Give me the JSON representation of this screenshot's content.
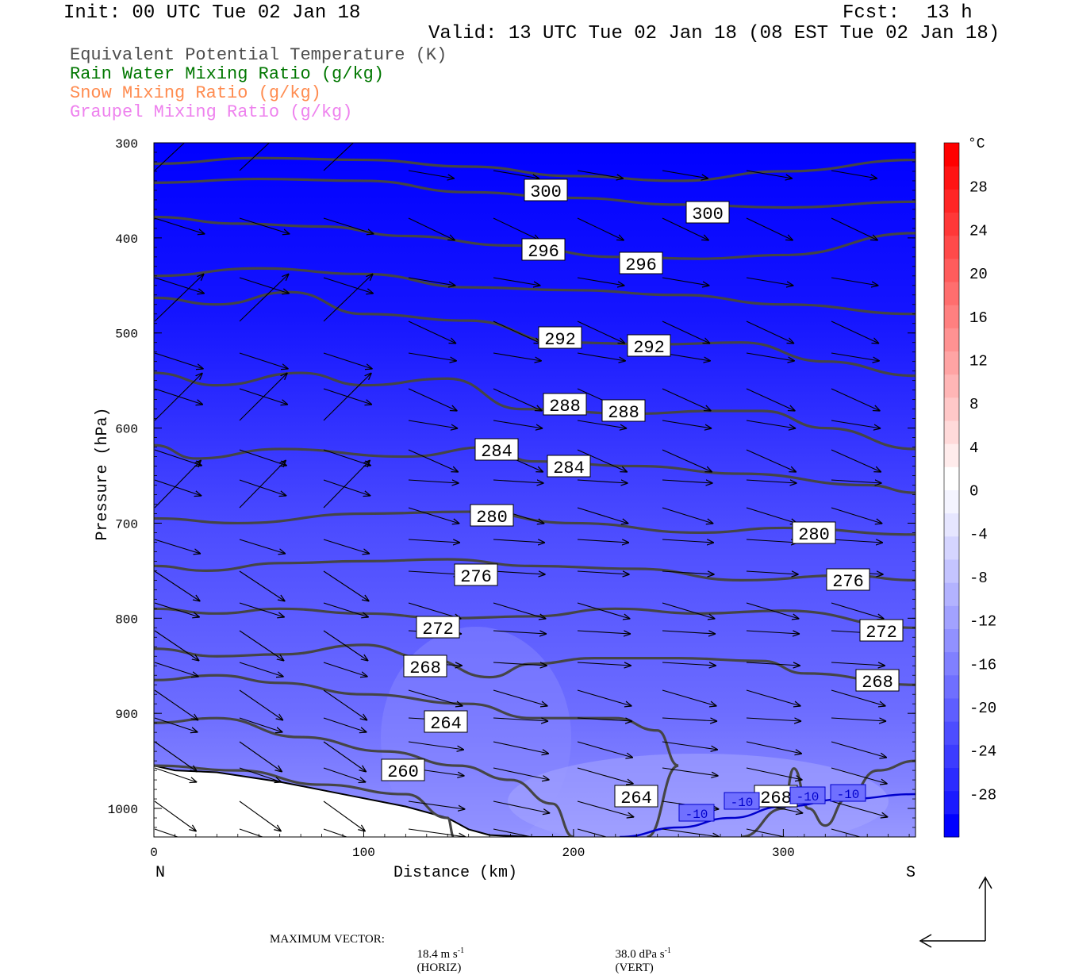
{
  "header": {
    "init": "Init: 00 UTC Tue 02 Jan 18",
    "fcst_label": "Fcst:",
    "fcst_value": "13 h",
    "valid": "Valid: 13 UTC Tue 02 Jan 18 (08 EST Tue 02 Jan 18)"
  },
  "fields": [
    {
      "label": "Equivalent Potential Temperature (K)",
      "color": "#4d4d4d"
    },
    {
      "label": "Rain Water Mixing Ratio (g/kg)",
      "color": "#007700"
    },
    {
      "label": "Snow Mixing Ratio (g/kg)",
      "color": "#ff8c50"
    },
    {
      "label": "Graupel Mixing Ratio (g/kg)",
      "color": "#ee82ee"
    }
  ],
  "footer": {
    "max_vector_label": "MAXIMUM VECTOR:",
    "horiz": "18.4 m s",
    "horiz_tail": "(HORIZ)",
    "vert": "38.0 dPa s",
    "vert_tail": "(VERT)",
    "exp": "-1"
  },
  "chart_data": {
    "type": "cross-section",
    "xlabel": "Distance (km)",
    "ylabel": "Pressure (hPa)",
    "xlim": [
      0,
      363
    ],
    "ylim": [
      1030,
      300
    ],
    "x_ticks": [
      "0",
      "100",
      "200",
      "300"
    ],
    "y_ticks": [
      "300",
      "400",
      "500",
      "600",
      "700",
      "800",
      "900",
      "1000"
    ],
    "x_end_labels": {
      "left": "N",
      "right": "S"
    },
    "colorbar": {
      "unit": "°C",
      "tick_labels": [
        "28",
        "24",
        "20",
        "16",
        "12",
        "8",
        "4",
        "0",
        "-4",
        "-8",
        "-12",
        "-16",
        "-20",
        "-24",
        "-28"
      ],
      "range": [
        -32,
        32
      ],
      "colors_cold_to_warm": [
        "#0000ff",
        "#1a1aff",
        "#2b2bff",
        "#3c3cff",
        "#4d4dff",
        "#5e5eff",
        "#6f6fff",
        "#8080ff",
        "#9191ff",
        "#a2a2ff",
        "#b3b3ff",
        "#c4c4ff",
        "#d5d5ff",
        "#e6e6ff",
        "#f4f4ff",
        "#ffffff",
        "#ffecec",
        "#ffdada",
        "#ffc8c8",
        "#ffb6b6",
        "#ffa4a4",
        "#ff9292",
        "#ff8080",
        "#ff6e6e",
        "#ff5c5c",
        "#ff4a4a",
        "#ff3838",
        "#ff2626",
        "#ff1414",
        "#ff0000"
      ]
    },
    "theta_e_contours": [
      {
        "label": "300",
        "points": [
          [
            0,
            322
          ],
          [
            50,
            316
          ],
          [
            100,
            318
          ],
          [
            150,
            325
          ],
          [
            200,
            335
          ],
          [
            250,
            340
          ],
          [
            300,
            330
          ],
          [
            363,
            318
          ]
        ]
      },
      {
        "label": "300",
        "points": [
          [
            0,
            342
          ],
          [
            50,
            338
          ],
          [
            100,
            340
          ],
          [
            150,
            352
          ],
          [
            200,
            358
          ],
          [
            250,
            365
          ],
          [
            300,
            368
          ],
          [
            363,
            362
          ]
        ]
      },
      {
        "label": "296",
        "points": [
          [
            0,
            378
          ],
          [
            40,
            385
          ],
          [
            80,
            388
          ],
          [
            120,
            398
          ],
          [
            170,
            408
          ],
          [
            220,
            420
          ],
          [
            260,
            422
          ],
          [
            300,
            418
          ],
          [
            363,
            395
          ]
        ]
      },
      {
        "label": "",
        "points": [
          [
            0,
            440
          ],
          [
            50,
            432
          ],
          [
            100,
            438
          ],
          [
            150,
            452
          ],
          [
            200,
            455
          ],
          [
            250,
            460
          ],
          [
            300,
            470
          ],
          [
            363,
            480
          ]
        ]
      },
      {
        "label": "292",
        "points": [
          [
            0,
            463
          ],
          [
            30,
            470
          ],
          [
            65,
            457
          ],
          [
            100,
            480
          ],
          [
            150,
            487
          ],
          [
            195,
            510
          ],
          [
            240,
            512
          ],
          [
            280,
            510
          ],
          [
            320,
            530
          ],
          [
            363,
            545
          ]
        ]
      },
      {
        "label": "288",
        "points": [
          [
            0,
            542
          ],
          [
            30,
            555
          ],
          [
            70,
            542
          ],
          [
            100,
            555
          ],
          [
            140,
            548
          ],
          [
            175,
            580
          ],
          [
            230,
            585
          ],
          [
            265,
            582
          ],
          [
            290,
            582
          ],
          [
            320,
            600
          ],
          [
            363,
            622
          ]
        ]
      },
      {
        "label": "284",
        "points": [
          [
            0,
            618
          ],
          [
            20,
            632
          ],
          [
            60,
            622
          ],
          [
            120,
            630
          ],
          [
            160,
            620
          ],
          [
            180,
            635
          ],
          [
            230,
            640
          ],
          [
            280,
            648
          ],
          [
            340,
            660
          ],
          [
            363,
            668
          ]
        ]
      },
      {
        "label": "280",
        "points": [
          [
            0,
            695
          ],
          [
            40,
            700
          ],
          [
            100,
            690
          ],
          [
            150,
            688
          ],
          [
            200,
            700
          ],
          [
            260,
            710
          ],
          [
            300,
            705
          ],
          [
            363,
            712
          ]
        ]
      },
      {
        "label": "276",
        "points": [
          [
            0,
            745
          ],
          [
            25,
            750
          ],
          [
            60,
            742
          ],
          [
            100,
            740
          ],
          [
            140,
            738
          ],
          [
            180,
            745
          ],
          [
            230,
            748
          ],
          [
            280,
            760
          ],
          [
            330,
            755
          ],
          [
            363,
            760
          ]
        ]
      },
      {
        "label": "272",
        "points": [
          [
            0,
            790
          ],
          [
            30,
            795
          ],
          [
            60,
            790
          ],
          [
            100,
            795
          ],
          [
            140,
            800
          ],
          [
            180,
            798
          ],
          [
            220,
            790
          ],
          [
            260,
            795
          ],
          [
            300,
            792
          ],
          [
            363,
            810
          ]
        ]
      },
      {
        "label": "268",
        "points": [
          [
            0,
            832
          ],
          [
            30,
            840
          ],
          [
            60,
            838
          ],
          [
            100,
            828
          ],
          [
            130,
            842
          ],
          [
            160,
            862
          ],
          [
            180,
            848
          ],
          [
            210,
            842
          ],
          [
            250,
            842
          ],
          [
            290,
            845
          ],
          [
            310,
            858
          ],
          [
            363,
            870
          ]
        ]
      },
      {
        "label": "",
        "points": [
          [
            0,
            865
          ],
          [
            30,
            860
          ],
          [
            60,
            868
          ],
          [
            100,
            880
          ],
          [
            150,
            890
          ],
          [
            180,
            905
          ],
          [
            220,
            905
          ],
          [
            240,
            918
          ],
          [
            250,
            955
          ],
          [
            235,
            1030
          ]
        ]
      },
      {
        "label": "264",
        "points": [
          [
            0,
            910
          ],
          [
            30,
            905
          ],
          [
            70,
            925
          ],
          [
            110,
            940
          ],
          [
            145,
            955
          ],
          [
            170,
            970
          ],
          [
            190,
            995
          ],
          [
            200,
            1030
          ]
        ]
      },
      {
        "label": "260",
        "points": [
          [
            0,
            955
          ],
          [
            40,
            960
          ],
          [
            80,
            975
          ],
          [
            120,
            985
          ],
          [
            140,
            1010
          ],
          [
            143,
            1030
          ]
        ]
      },
      {
        "label": "268",
        "points": [
          [
            280,
            1030
          ],
          [
            300,
            1000
          ],
          [
            305,
            958
          ],
          [
            312,
            1000
          ],
          [
            320,
            1018
          ],
          [
            330,
            990
          ],
          [
            345,
            960
          ],
          [
            363,
            950
          ]
        ]
      }
    ],
    "temperature_minus10_label": "-10",
    "terrain": [
      [
        0,
        955
      ],
      [
        10,
        960
      ],
      [
        30,
        962
      ],
      [
        60,
        972
      ],
      [
        90,
        985
      ],
      [
        120,
        998
      ],
      [
        140,
        1010
      ],
      [
        150,
        1022
      ],
      [
        160,
        1028
      ],
      [
        180,
        1030
      ],
      [
        200,
        1030
      ]
    ]
  }
}
